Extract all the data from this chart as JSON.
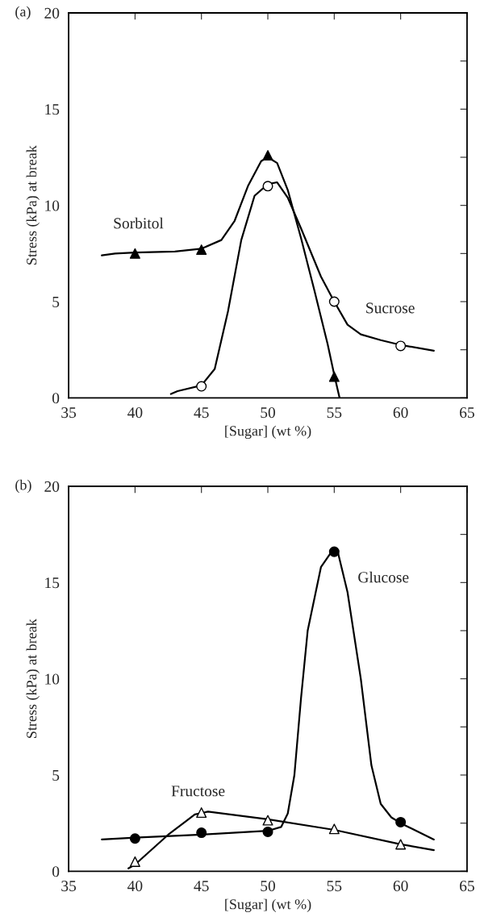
{
  "chart_data": [
    {
      "type": "line",
      "title": "(a)",
      "xlabel": "[Sugar] (wt %)",
      "ylabel": "Stress (kPa) at break",
      "xlim": [
        35,
        65
      ],
      "xticks": [
        35,
        40,
        45,
        50,
        55,
        60,
        65
      ],
      "ylim": [
        0,
        20
      ],
      "yticks": [
        0,
        {
          "value": 2.5,
          "label": null
        },
        5,
        {
          "value": 7.5,
          "label": null
        },
        10,
        {
          "value": 12.5,
          "label": null
        },
        15,
        {
          "value": 17.5,
          "label": null
        },
        20
      ],
      "grid": false,
      "legend": false,
      "annotations": [
        "Sorbitol",
        "Sucrose"
      ],
      "series": [
        {
          "type": "line",
          "color": "#000000",
          "marker": "none",
          "x": [
            37.5,
            38.5,
            40,
            43,
            45,
            46.5,
            47.5,
            48.5,
            49.5,
            50,
            50.7,
            51.5,
            52.5,
            53.5,
            54.5,
            55,
            55.4
          ],
          "values": [
            7.4,
            7.5,
            7.55,
            7.6,
            7.75,
            8.2,
            9.2,
            11.0,
            12.3,
            12.5,
            12.2,
            10.8,
            8.3,
            5.6,
            2.8,
            1.2,
            0
          ]
        },
        {
          "type": "line",
          "color": "#000000",
          "marker": "none",
          "x": [
            42.7,
            43.2,
            45,
            46,
            47,
            48,
            49,
            50,
            50.7,
            51.5,
            52.5,
            54,
            55,
            56,
            57,
            58.5,
            60,
            62.5
          ],
          "values": [
            0.2,
            0.35,
            0.65,
            1.5,
            4.5,
            8.2,
            10.5,
            11.1,
            11.2,
            10.4,
            8.8,
            6.3,
            5.0,
            3.8,
            3.3,
            3.0,
            2.75,
            2.45
          ]
        },
        {
          "type": "scatter",
          "color": "#000000",
          "marker": "triangle",
          "x": [
            40,
            45,
            50,
            55
          ],
          "values": [
            7.5,
            7.7,
            12.6,
            1.1
          ]
        },
        {
          "type": "scatter",
          "color": "#ffffff",
          "marker": "circle",
          "x": [
            45,
            50,
            55,
            60
          ],
          "values": [
            0.6,
            11.0,
            5.0,
            2.7
          ]
        }
      ]
    },
    {
      "type": "line",
      "title": "(b)",
      "xlabel": "[Sugar] (wt %)",
      "ylabel": "Stress (kPa) at break",
      "xlim": [
        35,
        65
      ],
      "xticks": [
        35,
        40,
        45,
        50,
        55,
        60,
        65
      ],
      "ylim": [
        0,
        20
      ],
      "yticks": [
        0,
        {
          "value": 2.5,
          "label": null
        },
        5,
        {
          "value": 7.5,
          "label": null
        },
        10,
        {
          "value": 12.5,
          "label": null
        },
        15,
        {
          "value": 17.5,
          "label": null
        },
        20
      ],
      "grid": false,
      "legend": false,
      "annotations": [
        "Glucose",
        "Fructose"
      ],
      "series": [
        {
          "type": "line",
          "color": "#000000",
          "marker": "none",
          "x": [
            37.5,
            40,
            45,
            50,
            51,
            51.5,
            52,
            52.5,
            53,
            54,
            54.8,
            55.3,
            56,
            57,
            57.8,
            58.5,
            59.3,
            60,
            62.5
          ],
          "values": [
            1.65,
            1.75,
            1.9,
            2.1,
            2.3,
            3.0,
            5.0,
            9.0,
            12.5,
            15.8,
            16.6,
            16.5,
            14.5,
            10.0,
            5.5,
            3.5,
            2.8,
            2.5,
            1.65
          ]
        },
        {
          "type": "line",
          "color": "#000000",
          "marker": "none",
          "x": [
            39.5,
            40,
            42.5,
            44.5,
            45.5,
            50,
            55,
            60,
            62.5
          ],
          "values": [
            0.15,
            0.35,
            1.9,
            2.95,
            3.1,
            2.7,
            2.15,
            1.4,
            1.1
          ]
        },
        {
          "type": "scatter",
          "color": "#000000",
          "marker": "circle",
          "x": [
            40,
            45,
            50,
            55,
            60
          ],
          "values": [
            1.7,
            2.0,
            2.05,
            16.6,
            2.55
          ]
        },
        {
          "type": "scatter",
          "color": "#ffffff",
          "marker": "triangle",
          "x": [
            40,
            45,
            50,
            55,
            60
          ],
          "values": [
            0.5,
            3.05,
            2.65,
            2.2,
            1.4
          ]
        }
      ]
    }
  ]
}
